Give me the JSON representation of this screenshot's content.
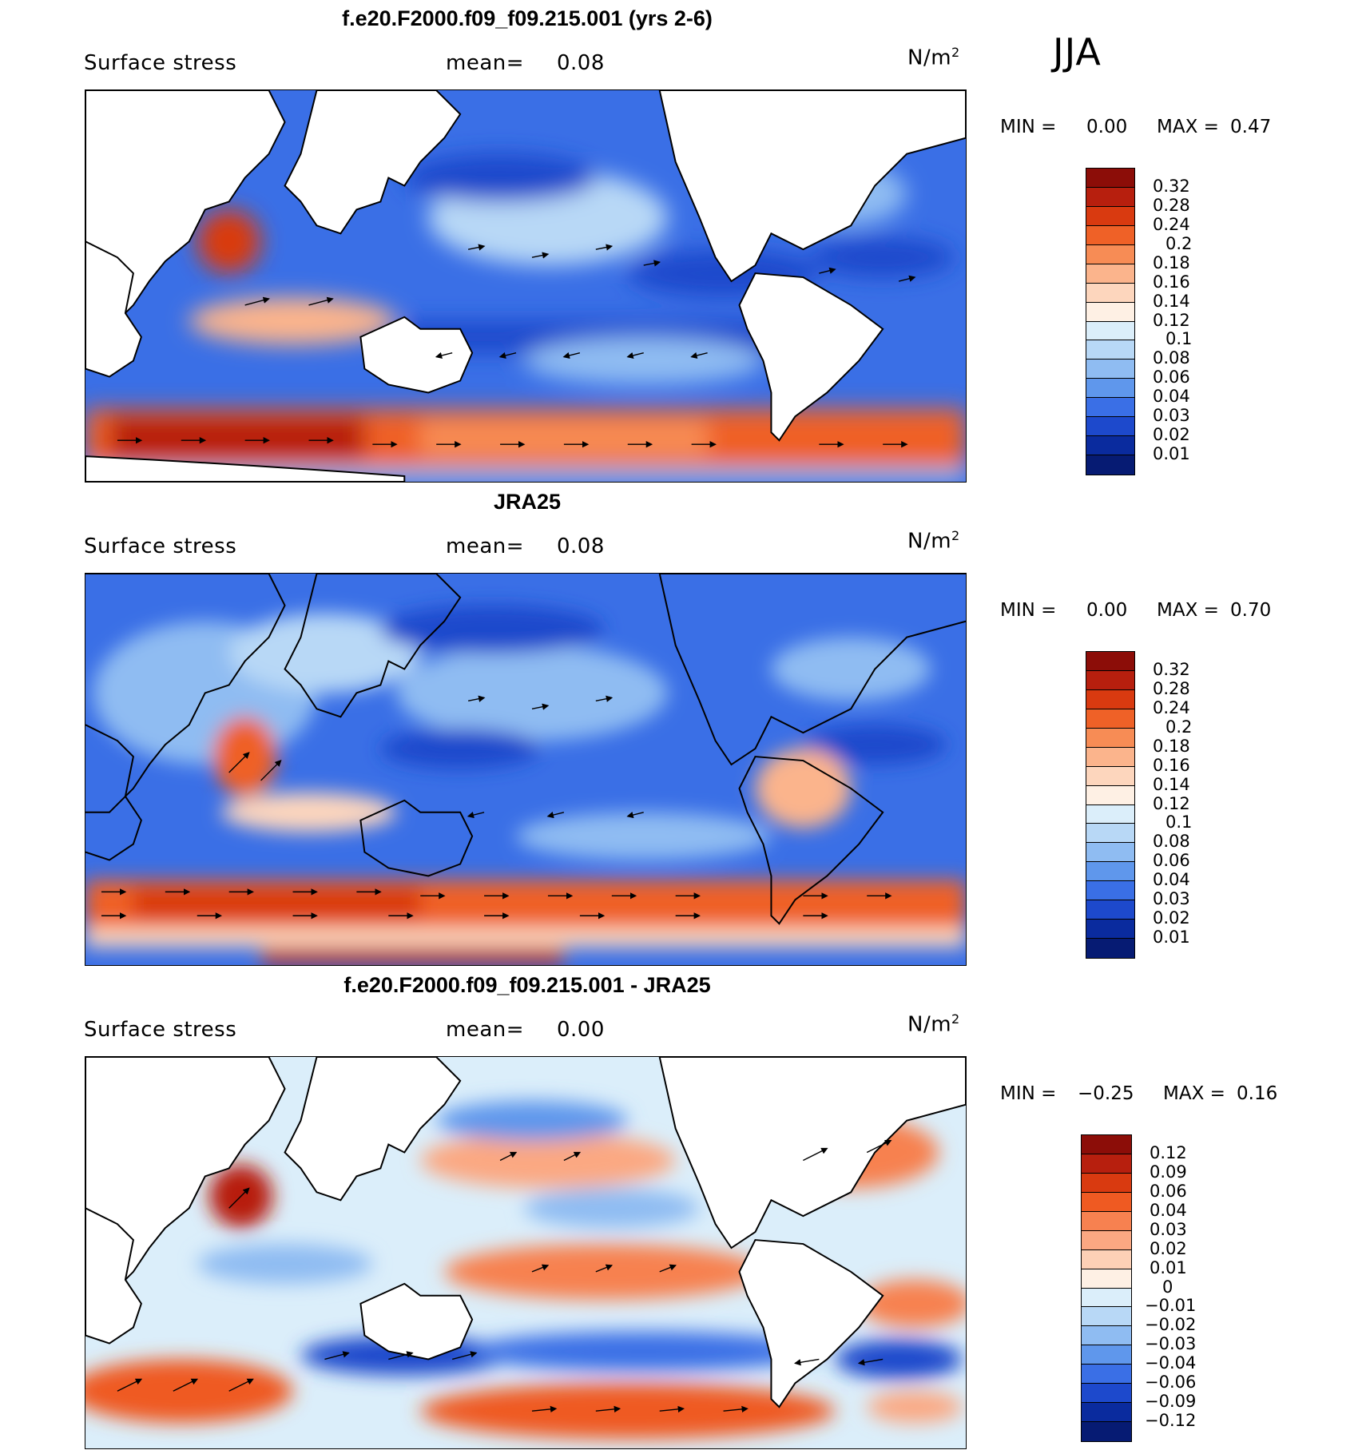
{
  "season": "JJA",
  "panels": [
    {
      "title": "f.e20.F2000.f09_f09.215.001 (yrs 2-6)",
      "variable": "Surface stress",
      "mean_label": "mean=",
      "mean_value": "0.08",
      "units_base": "N/m",
      "units_exp": "2",
      "min_label": "MIN =",
      "min_value": "0.00",
      "max_label": "MAX =",
      "max_value": "0.47",
      "colorbar": {
        "labels": [
          "0.32",
          "0.28",
          "0.24",
          "0.2",
          "0.18",
          "0.16",
          "0.14",
          "0.12",
          "0.1",
          "0.08",
          "0.06",
          "0.04",
          "0.03",
          "0.02",
          "0.01"
        ],
        "colors": [
          "#8c0d08",
          "#b71f0e",
          "#d93a10",
          "#ef6127",
          "#f78c55",
          "#fbb48c",
          "#fdd6bd",
          "#fef0e4",
          "#dbeefa",
          "#b8d8f6",
          "#8fbcf2",
          "#5f97ec",
          "#3a6fe6",
          "#1d49cc",
          "#0a2b9e",
          "#061b73"
        ]
      }
    },
    {
      "title": "JRA25",
      "variable": "Surface stress",
      "mean_label": "mean=",
      "mean_value": "0.08",
      "units_base": "N/m",
      "units_exp": "2",
      "min_label": "MIN =",
      "min_value": "0.00",
      "max_label": "MAX =",
      "max_value": "0.70",
      "colorbar": {
        "labels": [
          "0.32",
          "0.28",
          "0.24",
          "0.2",
          "0.18",
          "0.16",
          "0.14",
          "0.12",
          "0.1",
          "0.08",
          "0.06",
          "0.04",
          "0.03",
          "0.02",
          "0.01"
        ],
        "colors": [
          "#8c0d08",
          "#b71f0e",
          "#d93a10",
          "#ef6127",
          "#f78c55",
          "#fbb48c",
          "#fdd6bd",
          "#fef0e4",
          "#dbeefa",
          "#b8d8f6",
          "#8fbcf2",
          "#5f97ec",
          "#3a6fe6",
          "#1d49cc",
          "#0a2b9e",
          "#061b73"
        ]
      }
    },
    {
      "title": "f.e20.F2000.f09_f09.215.001 - JRA25",
      "variable": "Surface stress",
      "mean_label": "mean=",
      "mean_value": "0.00",
      "units_base": "N/m",
      "units_exp": "2",
      "min_label": "MIN =",
      "min_value": "−0.25",
      "max_label": "MAX =",
      "max_value": "0.16",
      "colorbar": {
        "labels": [
          "0.12",
          "0.09",
          "0.06",
          "0.04",
          "0.03",
          "0.02",
          "0.01",
          "0",
          "−0.01",
          "−0.02",
          "−0.03",
          "−0.04",
          "−0.06",
          "−0.09",
          "−0.12"
        ],
        "colors": [
          "#8c0d08",
          "#b71f0e",
          "#d93a10",
          "#ef5a22",
          "#f78150",
          "#fba882",
          "#fdd0b6",
          "#fef0e4",
          "#dbeefa",
          "#b8d8f6",
          "#8fbcf2",
          "#5f97ec",
          "#3a6fe6",
          "#1d49cc",
          "#0a2b9e",
          "#061b73"
        ]
      }
    }
  ]
}
